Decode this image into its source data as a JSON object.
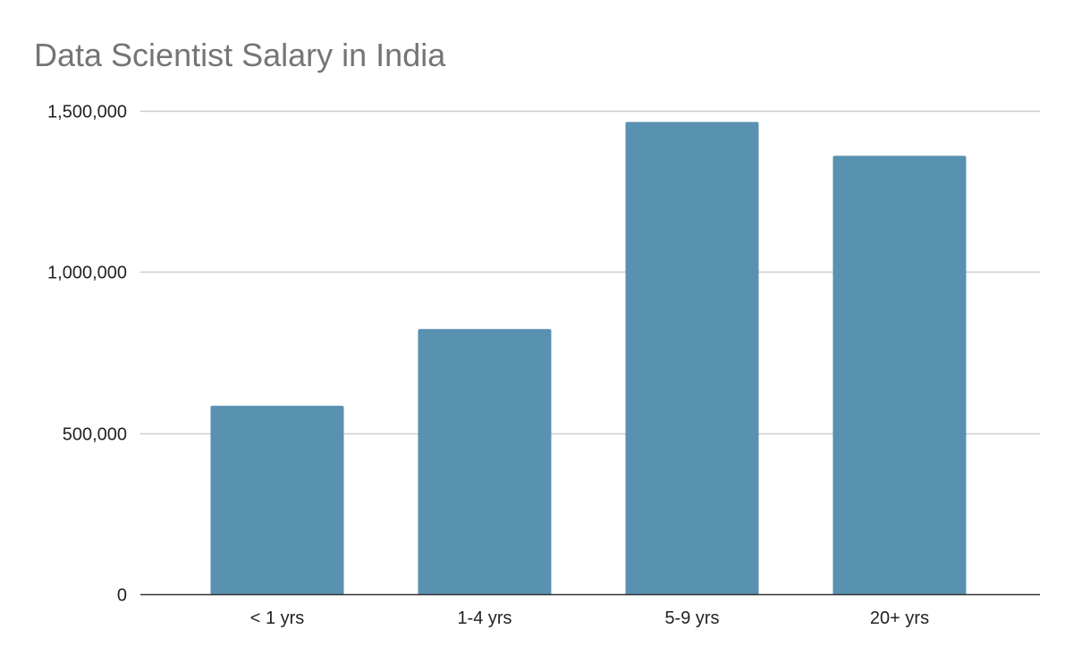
{
  "chart_data": {
    "type": "bar",
    "title": "Data Scientist Salary in India",
    "xlabel": "",
    "ylabel": "",
    "categories": [
      "< 1 yrs",
      "1-4 yrs",
      "5-9 yrs",
      "20+ yrs"
    ],
    "values": [
      584000,
      822000,
      1464000,
      1359000
    ],
    "ylim": [
      0,
      1500000
    ],
    "yticks": [
      0,
      500000,
      1000000,
      1500000
    ],
    "ytick_labels": [
      "0",
      "500,000",
      "1,000,000",
      "1,500,000"
    ],
    "grid": true,
    "legend": "none",
    "bar_color": "#5991b0",
    "grid_color": "#cccccc",
    "axis_color": "#333333"
  }
}
